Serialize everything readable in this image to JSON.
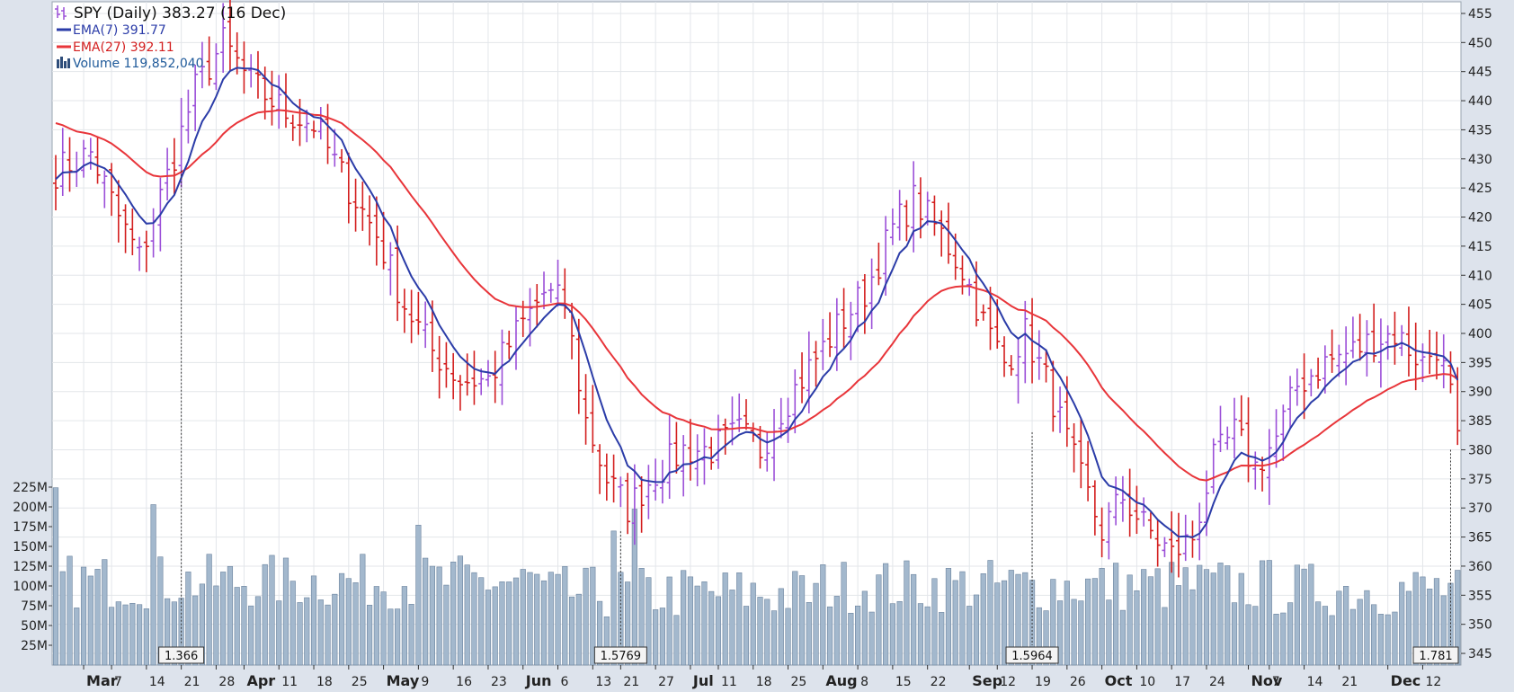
{
  "chart_data": {
    "type": "ohlc",
    "legend": {
      "title": "SPY (Daily) 383.27 (16 Dec)",
      "ema7": "EMA(7) 391.77",
      "ema27": "EMA(27) 392.11",
      "volume": "Volume 119,852,040"
    },
    "price_axis": {
      "min": 343,
      "max": 457,
      "ticks": [
        345,
        350,
        355,
        360,
        365,
        370,
        375,
        380,
        385,
        390,
        395,
        400,
        405,
        410,
        415,
        420,
        425,
        430,
        435,
        440,
        445,
        450,
        455
      ]
    },
    "volume_axis": {
      "max": 250,
      "ticks": [
        25,
        50,
        75,
        100,
        125,
        150,
        175,
        200,
        225
      ],
      "unit": "M"
    },
    "x_labels": [
      {
        "d": 4,
        "t": "Mar",
        "major": true
      },
      {
        "d": 8,
        "t": "7"
      },
      {
        "d": 13,
        "t": "14"
      },
      {
        "d": 18,
        "t": "21"
      },
      {
        "d": 23,
        "t": "28"
      },
      {
        "d": 27,
        "t": "Apr",
        "major": true
      },
      {
        "d": 32,
        "t": "11"
      },
      {
        "d": 37,
        "t": "18"
      },
      {
        "d": 42,
        "t": "25"
      },
      {
        "d": 47,
        "t": "May",
        "major": true
      },
      {
        "d": 52,
        "t": "9"
      },
      {
        "d": 57,
        "t": "16"
      },
      {
        "d": 62,
        "t": "23"
      },
      {
        "d": 67,
        "t": "Jun",
        "major": true
      },
      {
        "d": 72,
        "t": "6"
      },
      {
        "d": 77,
        "t": "13"
      },
      {
        "d": 81,
        "t": "21"
      },
      {
        "d": 86,
        "t": "27"
      },
      {
        "d": 91,
        "t": "Jul",
        "major": true
      },
      {
        "d": 95,
        "t": "11"
      },
      {
        "d": 100,
        "t": "18"
      },
      {
        "d": 105,
        "t": "25"
      },
      {
        "d": 110,
        "t": "Aug",
        "major": true
      },
      {
        "d": 115,
        "t": "8"
      },
      {
        "d": 120,
        "t": "15"
      },
      {
        "d": 125,
        "t": "22"
      },
      {
        "d": 131,
        "t": "Sep",
        "major": true
      },
      {
        "d": 135,
        "t": "12"
      },
      {
        "d": 140,
        "t": "19"
      },
      {
        "d": 145,
        "t": "26"
      },
      {
        "d": 150,
        "t": "Oct",
        "major": true
      },
      {
        "d": 155,
        "t": "10"
      },
      {
        "d": 160,
        "t": "17"
      },
      {
        "d": 165,
        "t": "24"
      },
      {
        "d": 171,
        "t": "Nov",
        "major": true
      },
      {
        "d": 174,
        "t": "7"
      },
      {
        "d": 179,
        "t": "14"
      },
      {
        "d": 184,
        "t": "21"
      },
      {
        "d": 191,
        "t": "Dec",
        "major": true
      },
      {
        "d": 196,
        "t": "12"
      }
    ],
    "annotations": [
      {
        "d": 18,
        "t": "1.366",
        "price": 428
      },
      {
        "d": 81,
        "t": "1.5769",
        "price": 366
      },
      {
        "d": 140,
        "t": "1.5964",
        "price": 383
      },
      {
        "d": 200,
        "t": "1.781",
        "price": 380
      }
    ],
    "knots": [
      [
        0,
        428
      ],
      [
        5,
        431
      ],
      [
        9,
        420
      ],
      [
        12,
        413
      ],
      [
        16,
        427
      ],
      [
        20,
        442
      ],
      [
        24,
        450
      ],
      [
        28,
        443
      ],
      [
        33,
        438
      ],
      [
        37,
        436
      ],
      [
        42,
        425
      ],
      [
        46,
        417
      ],
      [
        50,
        405
      ],
      [
        54,
        397
      ],
      [
        58,
        392
      ],
      [
        62,
        392
      ],
      [
        66,
        400
      ],
      [
        70,
        407
      ],
      [
        73,
        405
      ],
      [
        76,
        385
      ],
      [
        79,
        375
      ],
      [
        82,
        370
      ],
      [
        86,
        376
      ],
      [
        90,
        380
      ],
      [
        94,
        380
      ],
      [
        98,
        383
      ],
      [
        101,
        380
      ],
      [
        104,
        387
      ],
      [
        108,
        394
      ],
      [
        112,
        401
      ],
      [
        116,
        407
      ],
      [
        120,
        418
      ],
      [
        123,
        423
      ],
      [
        127,
        417
      ],
      [
        130,
        411
      ],
      [
        133,
        402
      ],
      [
        136,
        395
      ],
      [
        139,
        400
      ],
      [
        142,
        392
      ],
      [
        146,
        378
      ],
      [
        150,
        366
      ],
      [
        153,
        372
      ],
      [
        156,
        367
      ],
      [
        160,
        362
      ],
      [
        163,
        365
      ],
      [
        166,
        378
      ],
      [
        169,
        383
      ],
      [
        172,
        377
      ],
      [
        175,
        382
      ],
      [
        178,
        391
      ],
      [
        182,
        395
      ],
      [
        186,
        397
      ],
      [
        189,
        399
      ],
      [
        192,
        400
      ],
      [
        196,
        395
      ],
      [
        198,
        398
      ],
      [
        201,
        385
      ]
    ],
    "ema7_last": 391.77,
    "ema27_last": 392.11,
    "last_close": 383.27,
    "colors": {
      "up": "#9b4fd8",
      "down": "#d31e1e",
      "ema7": "#2b3ca8",
      "ema27": "#e8353a",
      "volume": "#a3b8cd",
      "volume_stroke": "#6b839e",
      "plot_bg": "#ffffff",
      "page_bg": "#dde3ec"
    }
  }
}
